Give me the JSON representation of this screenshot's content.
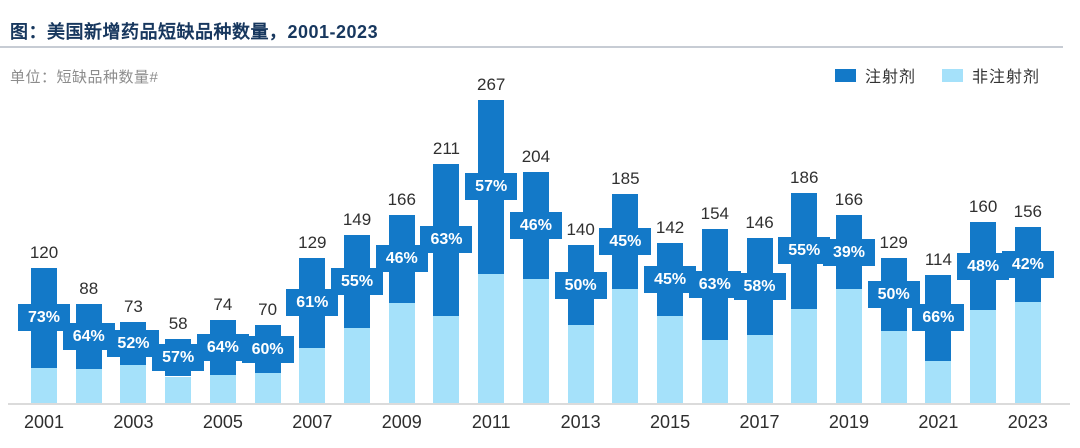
{
  "header": {
    "title": "图：美国新增药品短缺品种数量，2001-2023",
    "unit": "单位：短缺品种数量#"
  },
  "legend": [
    {
      "label": "注射剂",
      "color": "#1379C8"
    },
    {
      "label": "非注射剂",
      "color": "#A5E1FA"
    }
  ],
  "chart_data": {
    "type": "bar",
    "stacked": true,
    "title": "美国新增药品短缺品种数量，2001-2023",
    "ylabel": "短缺品种数量#",
    "categories": [
      "2001",
      "2002",
      "2003",
      "2004",
      "2005",
      "2006",
      "2007",
      "2008",
      "2009",
      "2010",
      "2011",
      "2012",
      "2013",
      "2014",
      "2015",
      "2016",
      "2017",
      "2018",
      "2019",
      "2020",
      "2021",
      "2022",
      "2023"
    ],
    "totals": [
      120,
      88,
      73,
      58,
      74,
      70,
      129,
      149,
      166,
      211,
      267,
      204,
      140,
      185,
      142,
      154,
      146,
      186,
      166,
      129,
      114,
      160,
      156
    ],
    "series": [
      {
        "name": "注射剂",
        "color": "#1379C8",
        "share_pct": [
          73,
          64,
          52,
          57,
          64,
          60,
          61,
          55,
          46,
          63,
          57,
          46,
          50,
          45,
          45,
          63,
          58,
          55,
          39,
          50,
          66,
          48,
          42
        ]
      },
      {
        "name": "非注射剂",
        "color": "#A5E1FA"
      }
    ],
    "pct_label_suffix": "%",
    "x_tick_labels": [
      "2001",
      "2003",
      "2005",
      "2007",
      "2009",
      "2011",
      "2013",
      "2015",
      "2017",
      "2019",
      "2021",
      "2023"
    ],
    "ylim": [
      0,
      280
    ],
    "grid": false,
    "legend_position": "top-right"
  }
}
